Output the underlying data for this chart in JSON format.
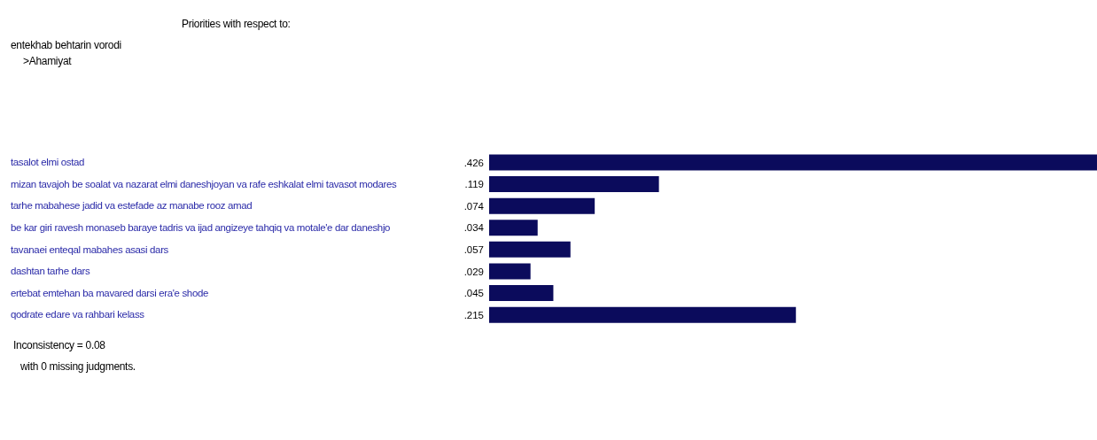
{
  "chart_data": {
    "type": "bar",
    "orientation": "horizontal",
    "title": "Priorities with respect to:",
    "subtitle": "entekhab behtarin vorodi\n>Ahamiyat",
    "categories": [
      "tasalot elmi ostad",
      "mizan tavajoh be soalat va nazarat elmi daneshjoyan va rafe eshkalat  elmi tavasot modares",
      "tarhe mabahese jadid va estefade az manabe rooz amad",
      "be kar giri ravesh monaseb baraye tadris va ijad angizeye tahqiq va motale'e dar daneshjo",
      "tavanaei enteqal mabahes asasi dars",
      "dashtan tarhe dars",
      "ertebat emtehan ba mavared darsi era'e  shode",
      "qodrate edare va rahbari kelass"
    ],
    "values": [
      0.426,
      0.119,
      0.074,
      0.034,
      0.057,
      0.029,
      0.045,
      0.215
    ],
    "value_labels": [
      ".426",
      ".119",
      ".074",
      ".034",
      ".057",
      ".029",
      ".045",
      ".215"
    ],
    "color": "#0b0b5c",
    "annotations": [
      "Inconsistency = 0.08",
      "with 0  missing judgments."
    ]
  }
}
